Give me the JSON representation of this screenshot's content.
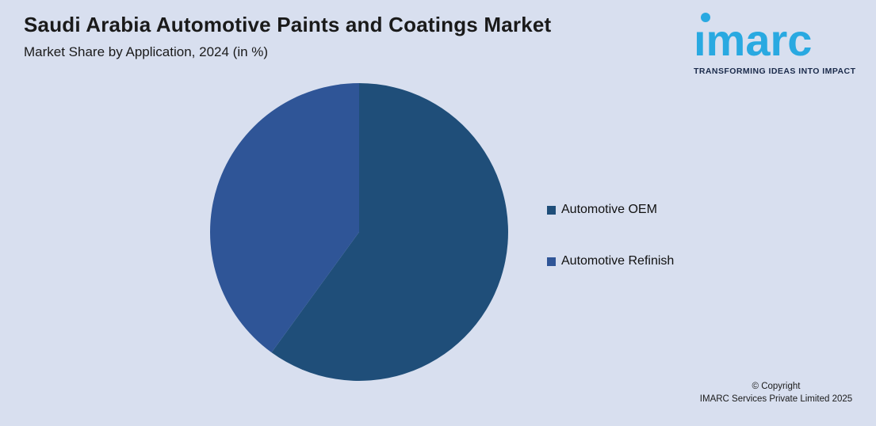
{
  "page": {
    "background_color": "#D8DFEF"
  },
  "header": {
    "title": "Saudi Arabia Automotive Paints and Coatings Market",
    "subtitle": "Market Share by Application, 2024 (in %)"
  },
  "logo": {
    "brand": "imarc",
    "tagline": "TRANSFORMING IDEAS INTO IMPACT",
    "brand_color": "#29A9E1",
    "tagline_color": "#1B2B4B"
  },
  "chart_data": {
    "type": "pie",
    "title": "Saudi Arabia Automotive Paints and Coatings Market",
    "subtitle": "Market Share by Application, 2024 (in %)",
    "labels": [
      "Automotive OEM",
      "Automotive Refinish"
    ],
    "values": [
      60,
      40
    ],
    "colors": [
      "#1F4E79",
      "#2F5597"
    ],
    "start_angle_deg": 0,
    "direction": "clockwise",
    "legend_position": "right",
    "data_labels_shown": false
  },
  "footer": {
    "copyright_line1": "© Copyright",
    "copyright_line2": "IMARC Services Private Limited 2025"
  }
}
